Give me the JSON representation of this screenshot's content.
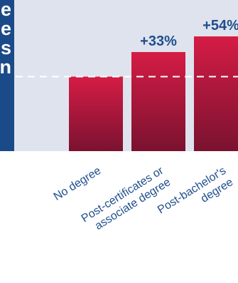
{
  "side_panel": {
    "lines": [
      "e",
      "e",
      "s",
      "n"
    ]
  },
  "chart_data": {
    "type": "bar",
    "categories": [
      "No degree",
      "Post-certificates or associate degree",
      "Post-bachelor's degree"
    ],
    "category_lines": [
      [
        "No degree"
      ],
      [
        "Post-certificates or",
        "associate degree"
      ],
      [
        "Post-bachelor's",
        "degree"
      ]
    ],
    "values": [
      100,
      133,
      154
    ],
    "data_labels": [
      "",
      "+33%",
      "+54%"
    ],
    "baseline": 100,
    "ylim": [
      0,
      175
    ],
    "grid": false,
    "colors": {
      "bar_top": "#d51c45",
      "bar_bottom": "#7a1230",
      "label": "#1f4e8c",
      "background": "#dfe3ee",
      "panel": "#1b4a88"
    }
  }
}
